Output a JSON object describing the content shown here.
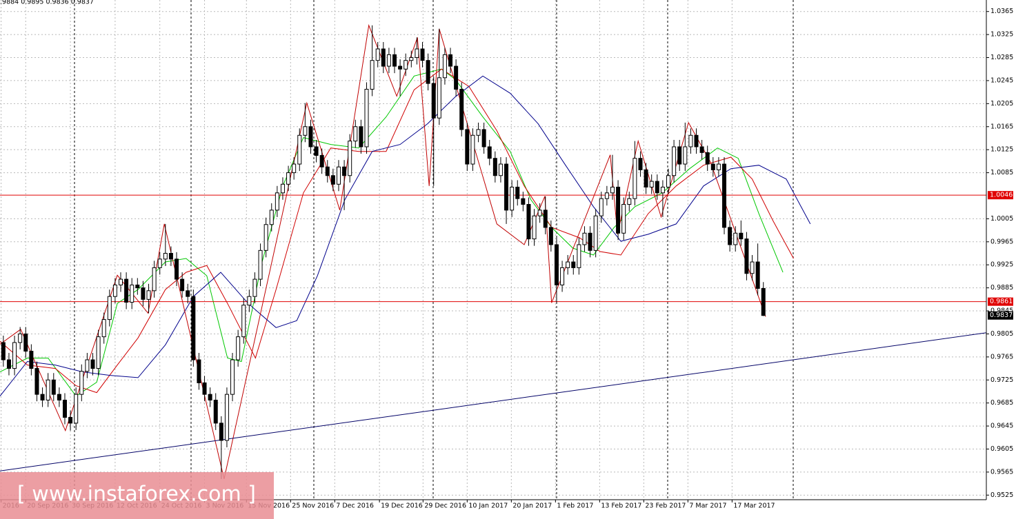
{
  "header": ".9884 0.9895 0.9836 0.9837",
  "watermark": "[ www.instaforex.com ]",
  "chart_data": {
    "type": "candlestick",
    "up_color": "#ffffff",
    "down_color": "#000000",
    "outline_color": "#000000",
    "grid": true,
    "xlim": [
      -0.6,
      175.9
    ],
    "ylim": [
      0.9517,
      1.0385
    ],
    "yticks": [
      1.0365,
      1.0325,
      1.0285,
      1.0245,
      1.0205,
      1.0165,
      1.0125,
      1.0085,
      1.0005,
      0.9965,
      0.9925,
      0.9885,
      0.9845,
      0.9805,
      0.9765,
      0.9725,
      0.9685,
      0.9645,
      0.9605,
      0.9565,
      0.9525
    ],
    "xticks": [
      {
        "value": -0.4,
        "label": "2016"
      },
      {
        "value": 4,
        "label": "20 Sep 2016"
      },
      {
        "value": 12,
        "label": "30 Sep 2016"
      },
      {
        "value": 20,
        "label": "12 Oct 2016"
      },
      {
        "value": 28,
        "label": "24 Oct 2016"
      },
      {
        "value": 36,
        "label": "3 Nov 2016"
      },
      {
        "value": 43.5,
        "label": "15 Nov 2016"
      },
      {
        "value": 51.4,
        "label": "25 Nov 2016"
      },
      {
        "value": 59.3,
        "label": "7 Dec 2016"
      },
      {
        "value": 67.3,
        "label": "19 Dec 2016"
      },
      {
        "value": 75.1,
        "label": "29 Dec 2016"
      },
      {
        "value": 83,
        "label": "10 Jan 2017"
      },
      {
        "value": 90.9,
        "label": "20 Jan 2017"
      },
      {
        "value": 98.8,
        "label": "1 Feb 2017"
      },
      {
        "value": 106.7,
        "label": "13 Feb 2017"
      },
      {
        "value": 114.6,
        "label": "23 Feb 2017"
      },
      {
        "value": 122.5,
        "label": "7 Mar 2017"
      },
      {
        "value": 130.4,
        "label": "17 Mar 2017"
      }
    ],
    "hlines": [
      {
        "value": 1.0046,
        "color": "#e00000"
      },
      {
        "value": 0.9861,
        "color": "#e00000"
      }
    ],
    "last_price": {
      "value": 0.9837,
      "color": "#000000"
    },
    "candles": [
      [
        0.979,
        0.9802,
        0.9748,
        0.976
      ],
      [
        0.976,
        0.9772,
        0.9733,
        0.9745
      ],
      [
        0.9745,
        0.9802,
        0.9733,
        0.979
      ],
      [
        0.979,
        0.9817,
        0.9778,
        0.9805
      ],
      [
        0.9805,
        0.9817,
        0.9763,
        0.9775
      ],
      [
        0.9775,
        0.9787,
        0.9733,
        0.9745
      ],
      [
        0.9745,
        0.9757,
        0.9688,
        0.97
      ],
      [
        0.97,
        0.9712,
        0.9678,
        0.969
      ],
      [
        0.969,
        0.9737,
        0.9678,
        0.9725
      ],
      [
        0.9725,
        0.9737,
        0.9688,
        0.97
      ],
      [
        0.97,
        0.9712,
        0.9678,
        0.969
      ],
      [
        0.969,
        0.9702,
        0.9648,
        0.966
      ],
      [
        0.966,
        0.9672,
        0.9637,
        0.965
      ],
      [
        0.965,
        0.9712,
        0.9638,
        0.97
      ],
      [
        0.97,
        0.9752,
        0.9688,
        0.974
      ],
      [
        0.974,
        0.9772,
        0.9728,
        0.976
      ],
      [
        0.976,
        0.9772,
        0.9733,
        0.9745
      ],
      [
        0.9745,
        0.9812,
        0.9733,
        0.98
      ],
      [
        0.98,
        0.9842,
        0.9788,
        0.983
      ],
      [
        0.983,
        0.9882,
        0.9818,
        0.987
      ],
      [
        0.987,
        0.9902,
        0.9858,
        0.989
      ],
      [
        0.989,
        0.9912,
        0.9878,
        0.99
      ],
      [
        0.99,
        0.9912,
        0.9848,
        0.986
      ],
      [
        0.986,
        0.9902,
        0.9848,
        0.989
      ],
      [
        0.989,
        0.9902,
        0.9873,
        0.9885
      ],
      [
        0.9885,
        0.9897,
        0.9853,
        0.9865
      ],
      [
        0.9865,
        0.9892,
        0.9841,
        0.988
      ],
      [
        0.988,
        0.9932,
        0.9868,
        0.992
      ],
      [
        0.992,
        0.9947,
        0.9908,
        0.9935
      ],
      [
        0.9935,
        0.9996,
        0.9923,
        0.9945
      ],
      [
        0.9945,
        0.9957,
        0.9923,
        0.9935
      ],
      [
        0.9935,
        0.9947,
        0.9888,
        0.99
      ],
      [
        0.99,
        0.9912,
        0.9868,
        0.988
      ],
      [
        0.988,
        0.9892,
        0.9858,
        0.987
      ],
      [
        0.987,
        0.9882,
        0.9748,
        0.976
      ],
      [
        0.976,
        0.9772,
        0.9708,
        0.972
      ],
      [
        0.972,
        0.9732,
        0.9688,
        0.97
      ],
      [
        0.97,
        0.9712,
        0.9678,
        0.969
      ],
      [
        0.969,
        0.9702,
        0.9638,
        0.965
      ],
      [
        0.965,
        0.9662,
        0.9553,
        0.962
      ],
      [
        0.962,
        0.9712,
        0.9608,
        0.97
      ],
      [
        0.97,
        0.9772,
        0.9688,
        0.976
      ],
      [
        0.976,
        0.9812,
        0.9748,
        0.98
      ],
      [
        0.98,
        0.9867,
        0.9788,
        0.9855
      ],
      [
        0.9855,
        0.9882,
        0.9843,
        0.987
      ],
      [
        0.987,
        0.9912,
        0.9858,
        0.99
      ],
      [
        0.99,
        0.9962,
        0.9888,
        0.995
      ],
      [
        0.995,
        1.0007,
        0.9938,
        0.9995
      ],
      [
        0.9995,
        1.0032,
        0.9983,
        1.002
      ],
      [
        1.002,
        1.0062,
        1.0008,
        1.005
      ],
      [
        1.005,
        1.0077,
        1.0038,
        1.0065
      ],
      [
        1.0065,
        1.0097,
        1.0053,
        1.0085
      ],
      [
        1.0085,
        1.0112,
        1.0073,
        1.01
      ],
      [
        1.01,
        1.0162,
        1.0088,
        1.015
      ],
      [
        1.015,
        1.0206,
        1.0138,
        1.0165
      ],
      [
        1.0165,
        1.0177,
        1.0118,
        1.013
      ],
      [
        1.013,
        1.0142,
        1.0103,
        1.0115
      ],
      [
        1.0115,
        1.0127,
        1.0083,
        1.0095
      ],
      [
        1.0095,
        1.0107,
        1.0068,
        1.008
      ],
      [
        1.008,
        1.0092,
        1.0053,
        1.0065
      ],
      [
        1.0065,
        1.0107,
        1.0053,
        1.0095
      ],
      [
        1.0095,
        1.0107,
        1.002,
        1.008
      ],
      [
        1.008,
        1.0152,
        1.0068,
        1.014
      ],
      [
        1.014,
        1.0177,
        1.0128,
        1.0165
      ],
      [
        1.0165,
        1.0177,
        1.0118,
        1.013
      ],
      [
        1.013,
        1.0242,
        1.0118,
        1.023
      ],
      [
        1.023,
        1.0341,
        1.0218,
        1.028
      ],
      [
        1.028,
        1.0312,
        1.0268,
        1.03
      ],
      [
        1.03,
        1.0312,
        1.0258,
        1.027
      ],
      [
        1.027,
        1.0302,
        1.0258,
        1.029
      ],
      [
        1.029,
        1.0302,
        1.0258,
        1.027
      ],
      [
        1.027,
        1.0282,
        1.0218,
        1.0265
      ],
      [
        1.0265,
        1.0292,
        1.0253,
        1.028
      ],
      [
        1.028,
        1.0297,
        1.0268,
        1.0285
      ],
      [
        1.0285,
        1.032,
        1.0273,
        1.03
      ],
      [
        1.03,
        1.0312,
        1.0268,
        1.028
      ],
      [
        1.028,
        1.0292,
        1.0228,
        1.024
      ],
      [
        1.024,
        1.0252,
        1.0062,
        1.018
      ],
      [
        1.018,
        1.0335,
        1.0168,
        1.025
      ],
      [
        1.025,
        1.0302,
        1.0238,
        1.029
      ],
      [
        1.029,
        1.0302,
        1.0258,
        1.027
      ],
      [
        1.027,
        1.0282,
        1.0218,
        1.023
      ],
      [
        1.023,
        1.0242,
        1.0148,
        1.016
      ],
      [
        1.016,
        1.0172,
        1.0088,
        1.01
      ],
      [
        1.01,
        1.0162,
        1.0088,
        1.015
      ],
      [
        1.015,
        1.0172,
        1.0138,
        1.016
      ],
      [
        1.016,
        1.0172,
        1.0118,
        1.013
      ],
      [
        1.013,
        1.0142,
        1.0098,
        1.011
      ],
      [
        1.011,
        1.0122,
        1.0068,
        1.008
      ],
      [
        1.008,
        1.0112,
        1.0068,
        1.01
      ],
      [
        1.01,
        1.0112,
        0.9996,
        1.002
      ],
      [
        1.002,
        1.0072,
        1.0008,
        1.006
      ],
      [
        1.006,
        1.0072,
        1.0028,
        1.004
      ],
      [
        1.004,
        1.0052,
        1.0018,
        1.003
      ],
      [
        1.003,
        1.0042,
        0.9958,
        0.997
      ],
      [
        0.997,
        1.0022,
        0.9958,
        1.001
      ],
      [
        1.001,
        1.0032,
        0.9998,
        1.002
      ],
      [
        1.002,
        1.0044,
        0.9978,
        0.999
      ],
      [
        0.999,
        1.0002,
        0.9948,
        0.996
      ],
      [
        0.996,
        0.9972,
        0.9859,
        0.989
      ],
      [
        0.989,
        0.9932,
        0.9878,
        0.992
      ],
      [
        0.992,
        0.9942,
        0.9908,
        0.993
      ],
      [
        0.993,
        0.9942,
        0.9908,
        0.992
      ],
      [
        0.992,
        0.9972,
        0.9908,
        0.996
      ],
      [
        0.996,
        0.9992,
        0.9948,
        0.998
      ],
      [
        0.998,
        0.9992,
        0.9938,
        0.995
      ],
      [
        0.995,
        1.0022,
        0.9938,
        1.001
      ],
      [
        1.001,
        1.0052,
        0.9998,
        1.004
      ],
      [
        1.004,
        1.0062,
        1.0028,
        1.005
      ],
      [
        1.005,
        1.0116,
        1.0038,
        1.006
      ],
      [
        1.006,
        1.0072,
        0.9968,
        0.998
      ],
      [
        0.998,
        1.0042,
        0.9968,
        1.003
      ],
      [
        1.003,
        1.0052,
        1.0018,
        1.004
      ],
      [
        1.004,
        1.014,
        1.0028,
        1.011
      ],
      [
        1.011,
        1.0122,
        1.0078,
        1.009
      ],
      [
        1.009,
        1.0102,
        1.0048,
        1.006
      ],
      [
        1.006,
        1.0082,
        1.0048,
        1.007
      ],
      [
        1.007,
        1.0082,
        1.0038,
        1.005
      ],
      [
        1.005,
        1.0072,
        1.0008,
        1.006
      ],
      [
        1.006,
        1.0092,
        1.0048,
        1.008
      ],
      [
        1.008,
        1.0142,
        1.0068,
        1.013
      ],
      [
        1.013,
        1.0142,
        1.0088,
        1.01
      ],
      [
        1.01,
        1.0172,
        1.0088,
        1.013
      ],
      [
        1.013,
        1.0162,
        1.0118,
        1.015
      ],
      [
        1.015,
        1.0162,
        1.0118,
        1.013
      ],
      [
        1.013,
        1.0142,
        1.0108,
        1.012
      ],
      [
        1.012,
        1.0132,
        1.0088,
        1.01
      ],
      [
        1.01,
        1.0112,
        1.0078,
        1.009
      ],
      [
        1.009,
        1.0112,
        1.0078,
        1.01
      ],
      [
        1.01,
        1.0112,
        0.9978,
        0.999
      ],
      [
        0.999,
        1.0002,
        0.9948,
        0.996
      ],
      [
        0.996,
        0.9992,
        0.9948,
        0.998
      ],
      [
        0.998,
        1.0002,
        0.9958,
        0.997
      ],
      [
        0.997,
        0.9982,
        0.9898,
        0.991
      ],
      [
        0.991,
        0.9942,
        0.9898,
        0.993
      ],
      [
        0.993,
        0.9962,
        0.9872,
        0.9884
      ],
      [
        0.9884,
        0.9895,
        0.9836,
        0.9837
      ]
    ],
    "lines": [
      {
        "color": "#00c800",
        "x": [
          -0.6,
          4.3,
          8.0,
          13.0,
          16.7,
          20.4,
          24.1,
          29.0,
          32.7,
          36.4,
          40.1,
          42.6,
          46.3,
          50.0,
          53.7,
          58.6,
          63.6,
          68.5,
          73.5,
          78.4,
          80.9,
          85.8,
          90.7,
          94.4,
          98.1,
          101.9,
          105.6,
          109.3,
          113.0,
          117.9,
          122.8,
          127.8,
          131.5,
          135.2,
          139.5
        ],
        "values": [
          0.9739,
          0.9763,
          0.9763,
          0.9697,
          0.9721,
          0.9858,
          0.9882,
          0.993,
          0.9936,
          0.9906,
          0.9763,
          0.9757,
          0.993,
          1.0062,
          1.0146,
          1.0134,
          1.0128,
          1.0182,
          1.0253,
          1.0265,
          1.0247,
          1.0182,
          1.0122,
          1.0038,
          0.999,
          0.9954,
          0.9942,
          0.999,
          1.0026,
          1.005,
          1.0092,
          1.0128,
          1.011,
          1.0014,
          0.9912
        ]
      },
      {
        "color": "#d00000",
        "x": [
          -0.6,
          4.3,
          9.3,
          13.0,
          16.7,
          20.4,
          24.1,
          29.0,
          32.7,
          36.4,
          40.1,
          45.1,
          48.8,
          53.7,
          58.6,
          63.6,
          68.5,
          73.5,
          78.4,
          83.3,
          88.3,
          93.2,
          98.1,
          103.1,
          106.8,
          110.5,
          115.4,
          120.4,
          125.3,
          130.2,
          134.0,
          137.7,
          141.4
        ],
        "values": [
          0.9792,
          0.9751,
          0.9745,
          0.9715,
          0.9703,
          0.9751,
          0.9798,
          0.9882,
          0.9912,
          0.9924,
          0.9858,
          0.9763,
          0.9882,
          1.005,
          1.0128,
          1.0122,
          1.0122,
          1.0229,
          1.0265,
          1.0235,
          1.0158,
          1.0062,
          0.999,
          0.9972,
          0.9948,
          0.9942,
          1.0014,
          1.0062,
          1.0098,
          1.0112,
          1.0074,
          1.0002,
          0.9936
        ]
      },
      {
        "color": "#00008b",
        "x": [
          -0.6,
          4.3,
          9.3,
          14.2,
          19.1,
          24.1,
          29.0,
          34.0,
          38.9,
          43.8,
          48.8,
          52.5,
          56.2,
          61.1,
          66.0,
          71.0,
          75.9,
          80.9,
          85.8,
          90.7,
          95.7,
          100.6,
          105.6,
          110.5,
          115.4,
          120.4,
          125.3,
          130.2,
          135.2,
          140.1,
          144.4
        ],
        "values": [
          0.9697,
          0.9757,
          0.9751,
          0.9739,
          0.9733,
          0.9729,
          0.9786,
          0.987,
          0.9912,
          0.9858,
          0.9816,
          0.9828,
          0.9906,
          1.0038,
          1.0122,
          1.0134,
          1.017,
          1.0217,
          1.0253,
          1.0223,
          1.017,
          1.0098,
          1.0026,
          0.9966,
          0.9978,
          0.9996,
          1.0062,
          1.0092,
          1.0098,
          1.0074,
          0.9996
        ]
      },
      {
        "color": "#c00000",
        "x": [
          -0.6,
          3.1,
          11.1,
          20.4,
          25.9,
          28.8,
          39.5,
          54.3,
          60.2,
          65.4,
          70.4,
          74.1,
          76.2,
          78.0,
          88.3,
          93.2,
          96.9,
          98.1,
          108.6,
          109.9,
          113.6,
          117.7,
          122.6,
          126.5,
          136.4
        ],
        "values": [
          0.9787,
          0.9813,
          0.9637,
          0.9907,
          0.9841,
          0.9996,
          0.9553,
          1.0206,
          1.002,
          1.0341,
          1.0218,
          1.032,
          1.0062,
          1.0335,
          0.9996,
          0.996,
          1.0044,
          0.9859,
          1.0116,
          0.9978,
          1.014,
          1.0008,
          1.0172,
          1.0104,
          0.9835
        ]
      },
      {
        "color": "#000066",
        "x": [
          -0.6,
          175.9
        ],
        "values": [
          0.9567,
          0.9807
        ]
      }
    ]
  }
}
